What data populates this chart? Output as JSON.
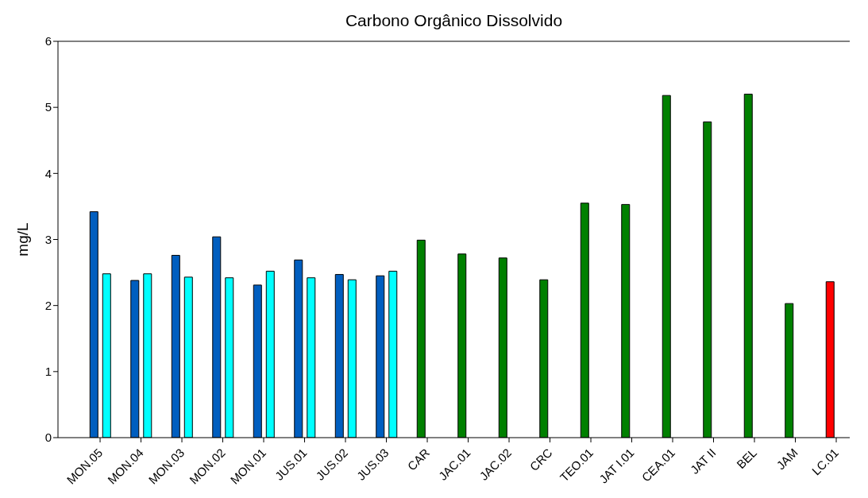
{
  "chart_data": {
    "type": "bar",
    "title": "Carbono Orgânico Dissolvido",
    "ylabel": "mg/L",
    "categories": [
      "MON.05",
      "MON.04",
      "MON.03",
      "MON.02",
      "MON.01",
      "JUS.01",
      "JUS.02",
      "JUS.03",
      "CAR",
      "JAC.01",
      "JAC.02",
      "CRC",
      "TEO.01",
      "JAT I.01",
      "CEA.01",
      "JAT II",
      "BEL",
      "JAM",
      "LC.01"
    ],
    "series": [
      {
        "colors": [
          "#005ebf",
          "#005ebf",
          "#005ebf",
          "#005ebf",
          "#005ebf",
          "#005ebf",
          "#005ebf",
          "#005ebf",
          "#008000",
          "#008000",
          "#008000",
          "#008000",
          "#008000",
          "#008000",
          "#008000",
          "#008000",
          "#008000",
          "#008000",
          "#ff0000"
        ],
        "values": [
          3.42,
          2.38,
          2.76,
          3.04,
          2.31,
          2.69,
          2.47,
          2.45,
          2.99,
          2.78,
          2.72,
          2.39,
          3.55,
          3.53,
          5.18,
          4.78,
          5.2,
          2.03,
          2.36
        ]
      },
      {
        "color": "#00ffff",
        "values": [
          2.48,
          2.48,
          2.43,
          2.42,
          2.52,
          2.42,
          2.39,
          2.52,
          null,
          null,
          null,
          null,
          null,
          null,
          null,
          null,
          null,
          null,
          null
        ]
      }
    ],
    "ylim": [
      0,
      6
    ],
    "yticks": [
      0,
      1,
      2,
      3,
      4,
      5,
      6
    ]
  }
}
